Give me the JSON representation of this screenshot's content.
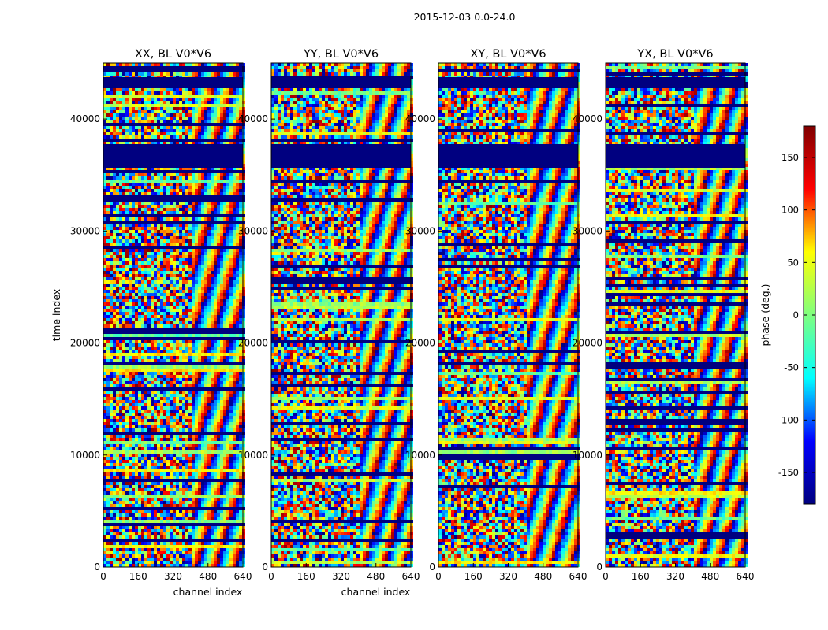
{
  "figure": {
    "suptitle": "2015-12-03 0.0-24.0"
  },
  "chart_data": [
    {
      "type": "heatmap",
      "title": "XX, BL V0*V6",
      "xlabel": "channel index",
      "ylabel": "time index",
      "xlim": [
        0,
        640
      ],
      "ylim": [
        0,
        45000
      ],
      "xticks": [
        0,
        160,
        320,
        480,
        640
      ],
      "yticks": [
        0,
        10000,
        20000,
        30000,
        40000
      ],
      "value": "phase"
    },
    {
      "type": "heatmap",
      "title": "YY, BL V0*V6",
      "xlabel": "channel index",
      "ylabel": "",
      "xlim": [
        0,
        640
      ],
      "ylim": [
        0,
        45000
      ],
      "xticks": [
        0,
        160,
        320,
        480,
        640
      ],
      "yticks": [
        0,
        10000,
        20000,
        30000,
        40000
      ],
      "value": "phase"
    },
    {
      "type": "heatmap",
      "title": "XY, BL V0*V6",
      "xlabel": "",
      "ylabel": "",
      "xlim": [
        0,
        640
      ],
      "ylim": [
        0,
        45000
      ],
      "xticks": [
        0,
        160,
        320,
        480,
        640
      ],
      "yticks": [
        0,
        10000,
        20000,
        30000,
        40000
      ],
      "value": "phase"
    },
    {
      "type": "heatmap",
      "title": "YX, BL V0*V6",
      "xlabel": "",
      "ylabel": "",
      "xlim": [
        0,
        640
      ],
      "ylim": [
        0,
        45000
      ],
      "xticks": [
        0,
        160,
        320,
        480,
        640
      ],
      "yticks": [
        0,
        10000,
        20000,
        30000,
        40000
      ],
      "value": "phase"
    }
  ],
  "colorbar": {
    "label": "phase (deg.)",
    "range": [
      -180,
      180
    ],
    "ticks": [
      -150,
      -100,
      -50,
      0,
      50,
      100,
      150
    ],
    "colormap": "jet",
    "colors": [
      "#00007f",
      "#0000ff",
      "#00ffff",
      "#7fff7f",
      "#ffff00",
      "#ff0000",
      "#7f0000"
    ]
  }
}
